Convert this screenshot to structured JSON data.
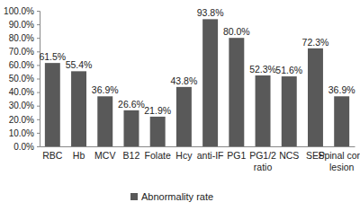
{
  "chart_data": {
    "type": "bar",
    "categories": [
      "RBC",
      "Hb",
      "MCV",
      "B12",
      "Folate",
      "Hcy",
      "anti-IF",
      "PG1",
      "PG1/2 ratio",
      "NCS",
      "SEP",
      "Spinal cord lesion"
    ],
    "series": [
      {
        "name": "Abnormality rate",
        "color": "#595959",
        "values": [
          61.5,
          55.4,
          36.9,
          26.6,
          21.9,
          43.8,
          93.8,
          80.0,
          52.3,
          51.6,
          72.3,
          36.9
        ],
        "value_labels": [
          "61.5%",
          "55.4%",
          "36.9%",
          "26.6%",
          "21.9%",
          "43.8%",
          "93.8%",
          "80.0%",
          "52.3%",
          "51.6%",
          "72.3%",
          "36.9%"
        ]
      }
    ],
    "ylim": [
      0,
      100
    ],
    "yticks": [
      {
        "value": 0,
        "label": "0.0%"
      },
      {
        "value": 10,
        "label": "10.0%"
      },
      {
        "value": 20,
        "label": "20.0%"
      },
      {
        "value": 30,
        "label": "30.0%"
      },
      {
        "value": 40,
        "label": "40.0%"
      },
      {
        "value": 50,
        "label": "50.0%"
      },
      {
        "value": 60,
        "label": "60.0%"
      },
      {
        "value": 70,
        "label": "70.0%"
      },
      {
        "value": 80,
        "label": "80.0%"
      },
      {
        "value": 90,
        "label": "90.0%"
      },
      {
        "value": 100,
        "label": "100.0%"
      }
    ],
    "grid": false,
    "legend": "bottom",
    "data_labels": true
  }
}
